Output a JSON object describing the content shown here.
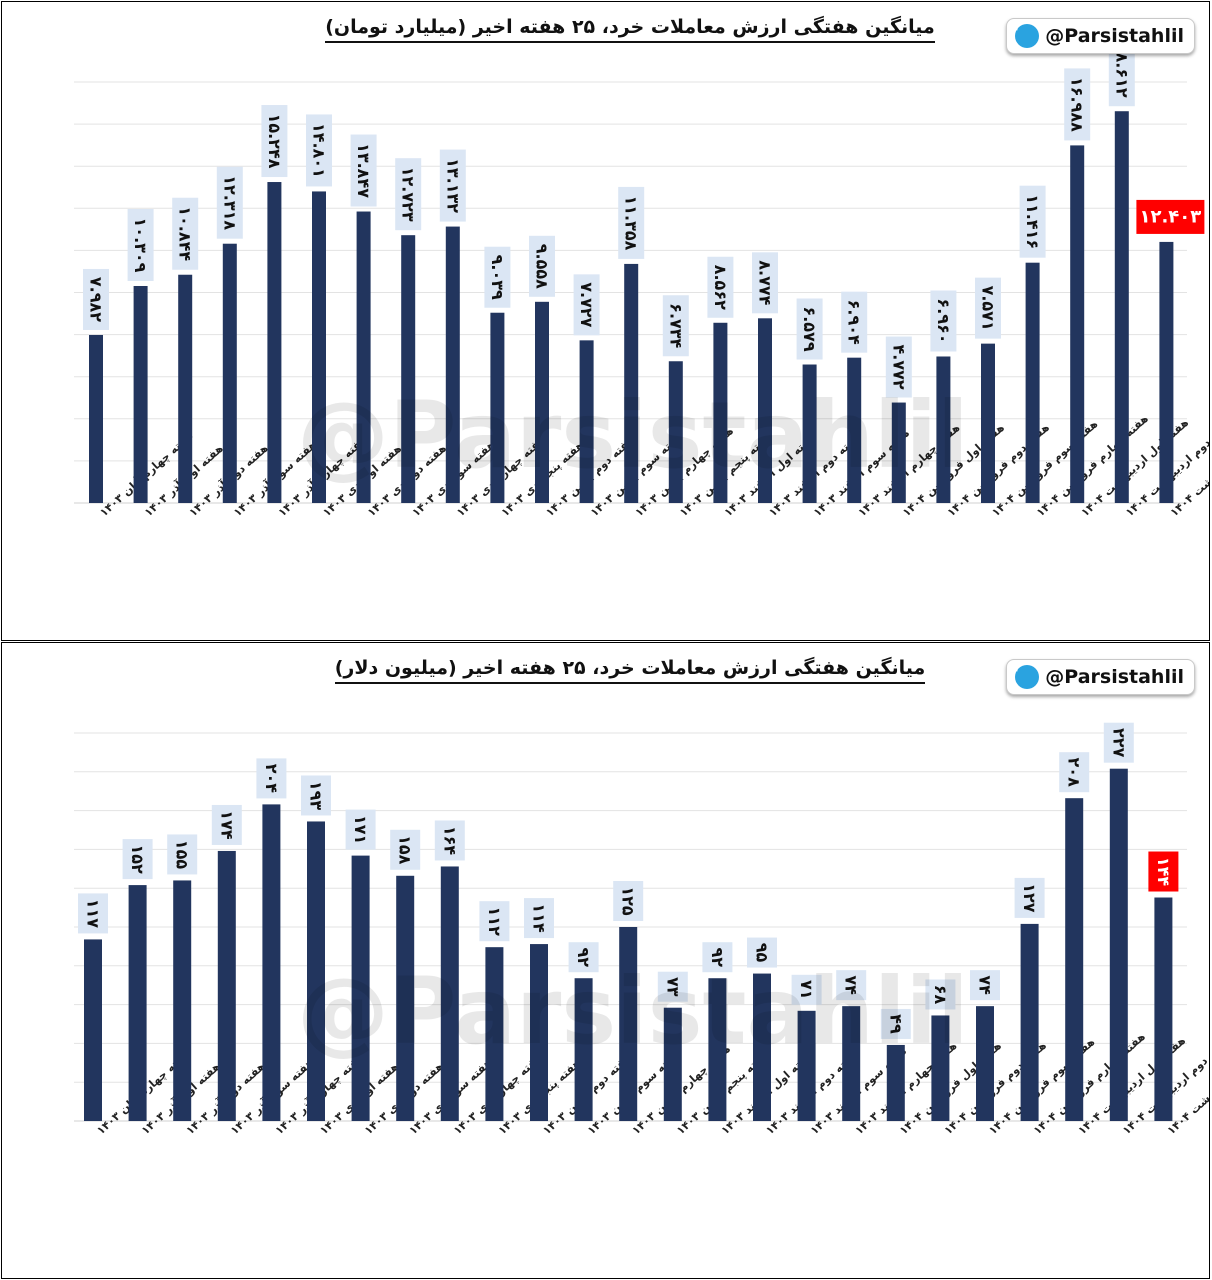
{
  "watermark_text": "@Parsistahlil",
  "charts": [
    {
      "title": "میانگین هفتگی ارزش معاملات خرد، ۲۵ هفته اخیر (میلیارد تومان)",
      "badge": "@Parsistahlil",
      "chart_data": {
        "type": "bar",
        "categories": [
          "هفته چهارم آبان ۱۴۰۳",
          "هفته اول آذر ۱۴۰۳",
          "هفته دوم آذر ۱۴۰۳",
          "هفته سوم آذر ۱۴۰۳",
          "هفته چهارم آذر ۱۴۰۳",
          "هفته اول دی ۱۴۰۳",
          "هفته دوم دی ۱۴۰۳",
          "هفته سوم دی ۱۴۰۳",
          "هفته چهارم دی ۱۴۰۳",
          "هفته پنجم دی ۱۴۰۳",
          "هفته دوم بهمن ۱۴۰۳",
          "هفته سوم بهمن ۱۴۰۳",
          "هفته چهارم بهمن ۱۴۰۳",
          "هفته پنجم بهمن ۱۴۰۳",
          "هفته اول اسفند ۱۴۰۳",
          "هفته دوم اسفند ۱۴۰۳",
          "هفته سوم اسفند ۱۴۰۳",
          "هفته چهارم اسفند ۱۴۰۳",
          "هفته اول فروردین ۱۴۰۴",
          "هفته دوم فروردین ۱۴۰۴",
          "هفته سوم فروردین ۱۴۰۴",
          "هفته چهارم فروردین ۱۴۰۴",
          "هفته اول اردیبهشت ۱۴۰۴",
          "هفته دوم اردیبهشت ۱۴۰۴",
          "هفته سوم اردیبهشت ۱۴۰۴"
        ],
        "values": [
          7982,
          10309,
          10844,
          12318,
          15248,
          14801,
          13847,
          12723,
          13132,
          9039,
          9558,
          7727,
          11358,
          6734,
          8562,
          8774,
          6579,
          6904,
          4772,
          6960,
          7571,
          11416,
          16988,
          18612,
          12403
        ],
        "labels": [
          "۷.۹۸۲",
          "۱۰.۳۰۹",
          "۱۰.۸۴۴",
          "۱۲.۳۱۸",
          "۱۵.۲۴۸",
          "۱۴.۸۰۱",
          "۱۳.۸۴۷",
          "۱۲.۷۲۳",
          "۱۳.۱۳۲",
          "۹.۰۳۹",
          "۹.۵۵۸",
          "۷.۷۲۷",
          "۱۱.۳۵۸",
          "۶.۷۳۴",
          "۸.۵۶۲",
          "۸.۷۷۴",
          "۶.۵۷۹",
          "۶.۹۰۴",
          "۴.۷۷۲",
          "۶.۹۶۰",
          "۷.۵۷۱",
          "۱۱.۴۱۶",
          "۱۶.۹۸۸",
          "۱۸.۶۱۲",
          "۱۲.۴۰۳"
        ],
        "ylim": [
          0,
          20000
        ],
        "grid": true,
        "bar_color": "#22355e",
        "label_bg": "#dbe6f4",
        "highlight_color": "#ff0000",
        "highlight_index": 24
      }
    },
    {
      "title": "میانگین هفتگی ارزش معاملات خرد، ۲۵ هفته اخیر (میلیون دلار)",
      "badge": "@Parsistahlil",
      "chart_data": {
        "type": "bar",
        "categories": [
          "هفته چهارم آبان ۱۴۰۳",
          "هفته اول آذر ۱۴۰۳",
          "هفته دوم آذر ۱۴۰۳",
          "هفته سوم آذر ۱۴۰۳",
          "هفته چهارم آذر ۱۴۰۳",
          "هفته اول دی ۱۴۰۳",
          "هفته دوم دی ۱۴۰۳",
          "هفته سوم دی ۱۴۰۳",
          "هفته چهارم دی ۱۴۰۳",
          "هفته پنجم دی ۱۴۰۳",
          "هفته دوم بهمن ۱۴۰۳",
          "هفته سوم بهمن ۱۴۰۳",
          "هفته چهارم بهمن ۱۴۰۳",
          "هفته پنجم بهمن ۱۴۰۳",
          "هفته اول اسفند ۱۴۰۳",
          "هفته دوم اسفند ۱۴۰۳",
          "هفته سوم اسفند ۱۴۰۳",
          "هفته چهارم اسفند ۱۴۰۳",
          "هفته اول فروردین ۱۴۰۴",
          "هفته دوم فروردین ۱۴۰۴",
          "هفته سوم فروردین ۱۴۰۴",
          "هفته چهارم فروردین ۱۴۰۴",
          "هفته اول اردیبهشت ۱۴۰۴",
          "هفته دوم اردیبهشت ۱۴۰۴",
          "هفته سوم اردیبهشت ۱۴۰۴"
        ],
        "values": [
          117,
          152,
          155,
          174,
          204,
          193,
          171,
          158,
          164,
          112,
          114,
          92,
          125,
          73,
          92,
          95,
          71,
          74,
          49,
          68,
          74,
          127,
          208,
          227,
          144
        ],
        "labels": [
          "۱۱۷",
          "۱۵۲",
          "۱۵۵",
          "۱۷۴",
          "۲۰۴",
          "۱۹۳",
          "۱۷۱",
          "۱۵۸",
          "۱۶۴",
          "۱۱۲",
          "۱۱۴",
          "۹۲",
          "۱۲۵",
          "۷۳",
          "۹۲",
          "۹۵",
          "۷۱",
          "۷۴",
          "۴۹",
          "۶۸",
          "۷۴",
          "۱۲۷",
          "۲۰۸",
          "۲۲۷",
          "۱۴۴"
        ],
        "ylim": [
          0,
          250
        ],
        "grid": true,
        "bar_color": "#22355e",
        "label_bg": "#dbe6f4",
        "highlight_color": "#ff0000",
        "highlight_index": 24
      }
    }
  ]
}
